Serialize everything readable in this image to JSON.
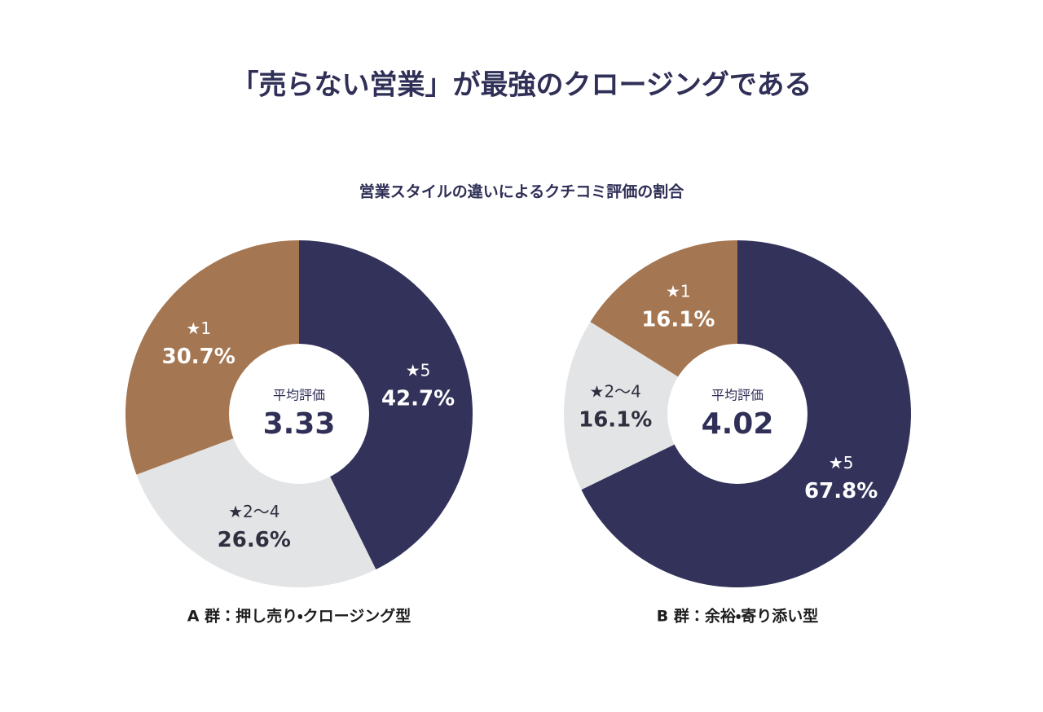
{
  "title": "「売らない営業」が最強のクロージングである",
  "subtitle": "営業スタイルの違いによるクチコミ評価の割合",
  "chart_data": [
    {
      "type": "pie",
      "title": "A 群：押し売り・クロージング型",
      "center_label": "平均評価",
      "center_value": 3.33,
      "categories": [
        "★5",
        "★2〜4",
        "★1"
      ],
      "values": [
        42.7,
        26.6,
        30.7
      ],
      "value_labels": [
        "42.7%",
        "26.6%",
        "30.7%"
      ],
      "colors": [
        "#33325a",
        "#e3e4e6",
        "#a47651"
      ]
    },
    {
      "type": "pie",
      "title": "B 群：余裕・寄り添い型",
      "center_label": "平均評価",
      "center_value": 4.02,
      "categories": [
        "★5",
        "★2〜4",
        "★1"
      ],
      "values": [
        67.8,
        16.1,
        16.1
      ],
      "value_labels": [
        "67.8%",
        "16.1%",
        "16.1%"
      ],
      "colors": [
        "#33325a",
        "#e3e4e6",
        "#a47651"
      ]
    }
  ]
}
